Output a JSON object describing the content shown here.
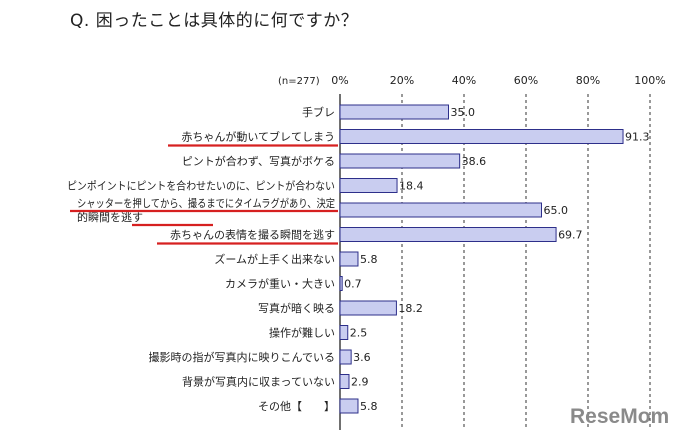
{
  "title": "Q. 困ったことは具体的に何ですか？",
  "n_note": "(n=277)",
  "brand": {
    "logo_text": "ReseMom"
  },
  "colors": {
    "bar_fill": "#c9cdf0",
    "bar_stroke": "#2d2f8a",
    "underline": "#d62020",
    "grid": "#333333"
  },
  "chart_data": {
    "type": "bar",
    "orientation": "horizontal",
    "xlim": [
      0,
      100
    ],
    "ticks": [
      "0%",
      "20%",
      "40%",
      "60%",
      "80%",
      "100%"
    ],
    "categories": [
      {
        "label": "手ブレ",
        "value": 35.0,
        "value_label": "35.0",
        "underline": false
      },
      {
        "label": "赤ちゃんが動いてブレてしまう",
        "value": 91.3,
        "value_label": "91.3",
        "underline": true
      },
      {
        "label": "ピントが合わず、写真がボケる",
        "value": 38.6,
        "value_label": "38.6",
        "underline": false
      },
      {
        "label": "ピンポイントにピントを合わせたいのに、ピントが合わない",
        "value": 18.4,
        "value_label": "18.4",
        "underline": false
      },
      {
        "label": "シャッターを押してから、撮るまでにタイムラグがあり、決定",
        "label2": "的瞬間を逃す",
        "value": 65.0,
        "value_label": "65.0",
        "underline": true
      },
      {
        "label": "赤ちゃんの表情を撮る瞬間を逃す",
        "value": 69.7,
        "value_label": "69.7",
        "underline": true
      },
      {
        "label": "ズームが上手く出来ない",
        "value": 5.8,
        "value_label": "5.8",
        "underline": false
      },
      {
        "label": "カメラが重い・大きい",
        "value": 0.7,
        "value_label": "0.7",
        "underline": false
      },
      {
        "label": "写真が暗く映る",
        "value": 18.2,
        "value_label": "18.2",
        "underline": false
      },
      {
        "label": "操作が難しい",
        "value": 2.5,
        "value_label": "2.5",
        "underline": false
      },
      {
        "label": "撮影時の指が写真内に映りこんでいる",
        "value": 3.6,
        "value_label": "3.6",
        "underline": false
      },
      {
        "label": "背景が写真内に収まっていない",
        "value": 2.9,
        "value_label": "2.9",
        "underline": false
      },
      {
        "label": "その他【　　】",
        "value": 5.8,
        "value_label": "5.8",
        "underline": false
      }
    ]
  }
}
